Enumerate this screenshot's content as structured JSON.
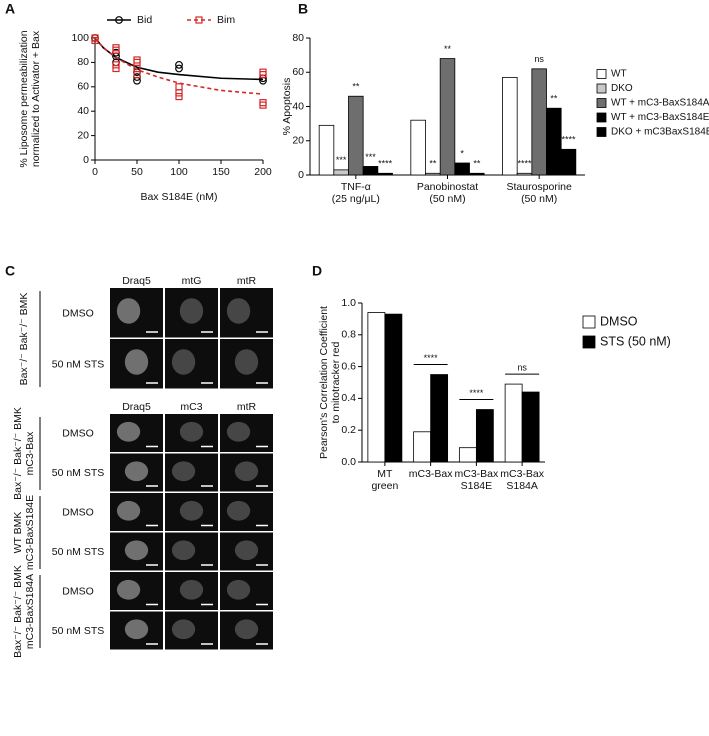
{
  "chart_data": [
    {
      "type": "line",
      "panel_label": "A",
      "xlabel": "Bax S184E (nM)",
      "ylabel": "% Liposome permeabilization\nnormalized to Activator + Bax",
      "xlim": [
        0,
        200
      ],
      "xticks": [
        0,
        50,
        100,
        150,
        200
      ],
      "ylim": [
        0,
        100
      ],
      "yticks": [
        0,
        20,
        40,
        60,
        80,
        100
      ],
      "series": [
        {
          "name": "Bid",
          "color": "#000000",
          "marker": "circle",
          "line_style": "solid",
          "x": [
            0,
            25,
            25,
            25,
            50,
            50,
            50,
            100,
            100,
            200,
            200
          ],
          "values": [
            100,
            80,
            85,
            88,
            65,
            68,
            72,
            75,
            78,
            65,
            67
          ],
          "fit_x": [
            0,
            10,
            25,
            50,
            75,
            100,
            150,
            200
          ],
          "fit_values": [
            100,
            92,
            84,
            76,
            72,
            70,
            67,
            66
          ]
        },
        {
          "name": "Bim",
          "color": "#d62728",
          "marker": "square",
          "line_style": "dashed",
          "x": [
            0,
            0,
            25,
            25,
            25,
            25,
            50,
            50,
            50,
            50,
            100,
            100,
            100,
            200,
            200,
            200,
            200
          ],
          "values": [
            100,
            98,
            75,
            78,
            90,
            92,
            70,
            75,
            80,
            82,
            52,
            55,
            60,
            45,
            47,
            70,
            72
          ],
          "fit_x": [
            0,
            10,
            25,
            50,
            75,
            100,
            150,
            200
          ],
          "fit_values": [
            100,
            92,
            84,
            74,
            68,
            63,
            57,
            54
          ]
        }
      ]
    },
    {
      "type": "bar",
      "panel_label": "B",
      "ylabel": "% Apoptosis",
      "categories": [
        "TNF-α\n(25 ng/μL)",
        "Panobinostat\n(50 nM)",
        "Staurosporine\n(50 nM)"
      ],
      "ylim": [
        0,
        80
      ],
      "yticks": [
        0,
        20,
        40,
        60,
        80
      ],
      "legend": "right",
      "series": [
        {
          "name": "WT",
          "color": "#ffffff",
          "values": [
            29,
            32,
            57
          ]
        },
        {
          "name": "DKO",
          "color": "#c8c8c8",
          "values": [
            3,
            1,
            1
          ],
          "significance": [
            "***",
            "**",
            "****"
          ]
        },
        {
          "name": "WT + mC3-BaxS184A",
          "color": "#6e6e6e",
          "values": [
            46,
            68,
            62
          ],
          "significance": [
            "**",
            "**",
            "ns"
          ]
        },
        {
          "name": "WT + mC3-BaxS184E",
          "color": "#000000",
          "values": [
            5,
            7,
            39
          ],
          "significance": [
            "***",
            "*",
            "**"
          ]
        },
        {
          "name": "DKO + mC3BaxS184E",
          "color": "#000000",
          "values": [
            1,
            1,
            15
          ],
          "significance": [
            "****",
            "**",
            "****"
          ]
        }
      ]
    },
    {
      "type": "bar",
      "panel_label": "D",
      "ylabel": "Pearson's Correlation Coefficient\nto mitotracker red",
      "categories": [
        "MT\ngreen",
        "mC3-Bax",
        "mC3-Bax\nS184E",
        "mC3-Bax\nS184A"
      ],
      "ylim": [
        0,
        1
      ],
      "yticks": [
        {
          "value": 0,
          "label": "0.0"
        },
        0.2,
        0.4,
        0.6,
        0.8,
        {
          "value": 1,
          "label": "1.0"
        }
      ],
      "legend": "right",
      "significance": [
        null,
        "****",
        "****",
        "ns"
      ],
      "series": [
        {
          "name": "DMSO",
          "color": "#ffffff",
          "values": [
            0.94,
            0.19,
            0.09,
            0.49
          ]
        },
        {
          "name": "STS (50 nM)",
          "color": "#000000",
          "values": [
            0.93,
            0.55,
            0.33,
            0.44
          ]
        }
      ]
    }
  ],
  "panel_c": {
    "panel_label": "C",
    "blocks": [
      {
        "headers": [
          "Draq5",
          "mtG",
          "mtR"
        ],
        "groups": [
          {
            "label": "Bax⁻/⁻ Bak⁻/⁻ BMK",
            "rows": [
              "DMSO",
              "50 nM STS"
            ]
          }
        ]
      },
      {
        "headers": [
          "Draq5",
          "mC3",
          "mtR"
        ],
        "groups": [
          {
            "label": "Bax⁻/⁻ Bak⁻/⁻ BMK\nmC3-Bax",
            "rows": [
              "DMSO",
              "50 nM STS"
            ]
          },
          {
            "label": "WT BMK\nmC3-BaxS184E",
            "rows": [
              "DMSO",
              "50 nM STS"
            ]
          },
          {
            "label": "Bax⁻/⁻ Bak⁻/⁻ BMK\nmC3-BaxS184A",
            "rows": [
              "DMSO",
              "50 nM STS"
            ]
          }
        ]
      }
    ]
  }
}
